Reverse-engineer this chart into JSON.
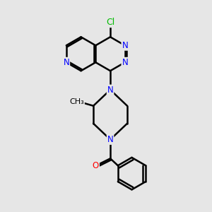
{
  "bg_color": "#e6e6e6",
  "atom_colors": {
    "C": "#000000",
    "N": "#0000ff",
    "O": "#ff0000",
    "Cl": "#00bb00"
  },
  "bond_color": "#000000",
  "bond_width": 1.8,
  "figsize": [
    3.0,
    3.0
  ],
  "dpi": 100
}
